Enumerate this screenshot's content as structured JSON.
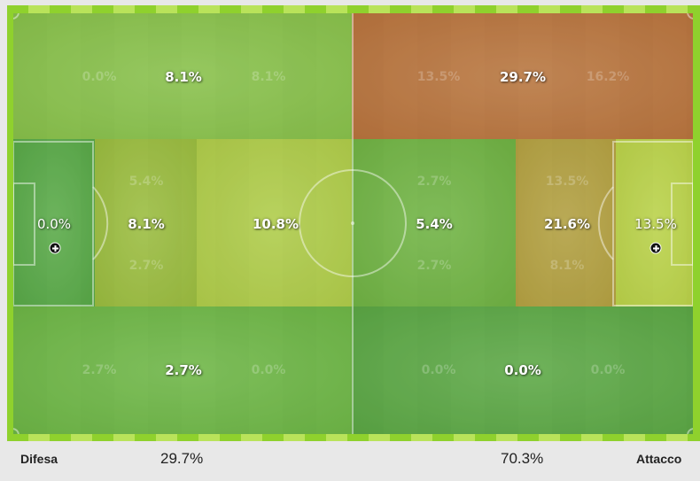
{
  "zones": [
    {
      "id": "top-left",
      "color": "#8dc24c"
    },
    {
      "id": "top-right",
      "color": "#c9643c"
    },
    {
      "id": "gk-left",
      "color": "#52a548"
    },
    {
      "id": "mid-left-1",
      "color": "#a4bd3e"
    },
    {
      "id": "mid-left-2",
      "color": "#bdd04a"
    },
    {
      "id": "mid-right-1",
      "color": "#70b244"
    },
    {
      "id": "mid-right-2",
      "color": "#c29a40"
    },
    {
      "id": "gk-right",
      "color": "#cbd84a"
    },
    {
      "id": "bot-left",
      "color": "#6cb546"
    },
    {
      "id": "bot-right",
      "color": "#56a345"
    }
  ],
  "main_values": {
    "top_left": "8.1%",
    "top_right": "29.7%",
    "mid_gk_left": "0.0%",
    "mid_left_1": "8.1%",
    "mid_left_2": "10.8%",
    "mid_right_1": "5.4%",
    "mid_right_2": "21.6%",
    "mid_gk_right": "13.5%",
    "bot_left": "2.7%",
    "bot_right": "0.0%"
  },
  "faint_values": {
    "top_left_a": "0.0%",
    "top_left_b": "8.1%",
    "top_right_a": "13.5%",
    "top_right_b": "16.2%",
    "mid_left_1_top": "5.4%",
    "mid_left_1_bottom": "2.7%",
    "mid_right_1_top": "2.7%",
    "mid_right_1_bottom": "2.7%",
    "mid_right_2_top": "13.5%",
    "mid_right_2_bottom": "8.1%",
    "bot_left_a": "2.7%",
    "bot_left_b": "0.0%",
    "bot_right_a": "0.0%",
    "bot_right_b": "0.0%"
  },
  "footer": {
    "left_label": "Difesa",
    "left_value": "29.7%",
    "right_value": "70.3%",
    "right_label": "Attacco"
  },
  "icons": {
    "goal_marker": "plus-circle-icon"
  }
}
